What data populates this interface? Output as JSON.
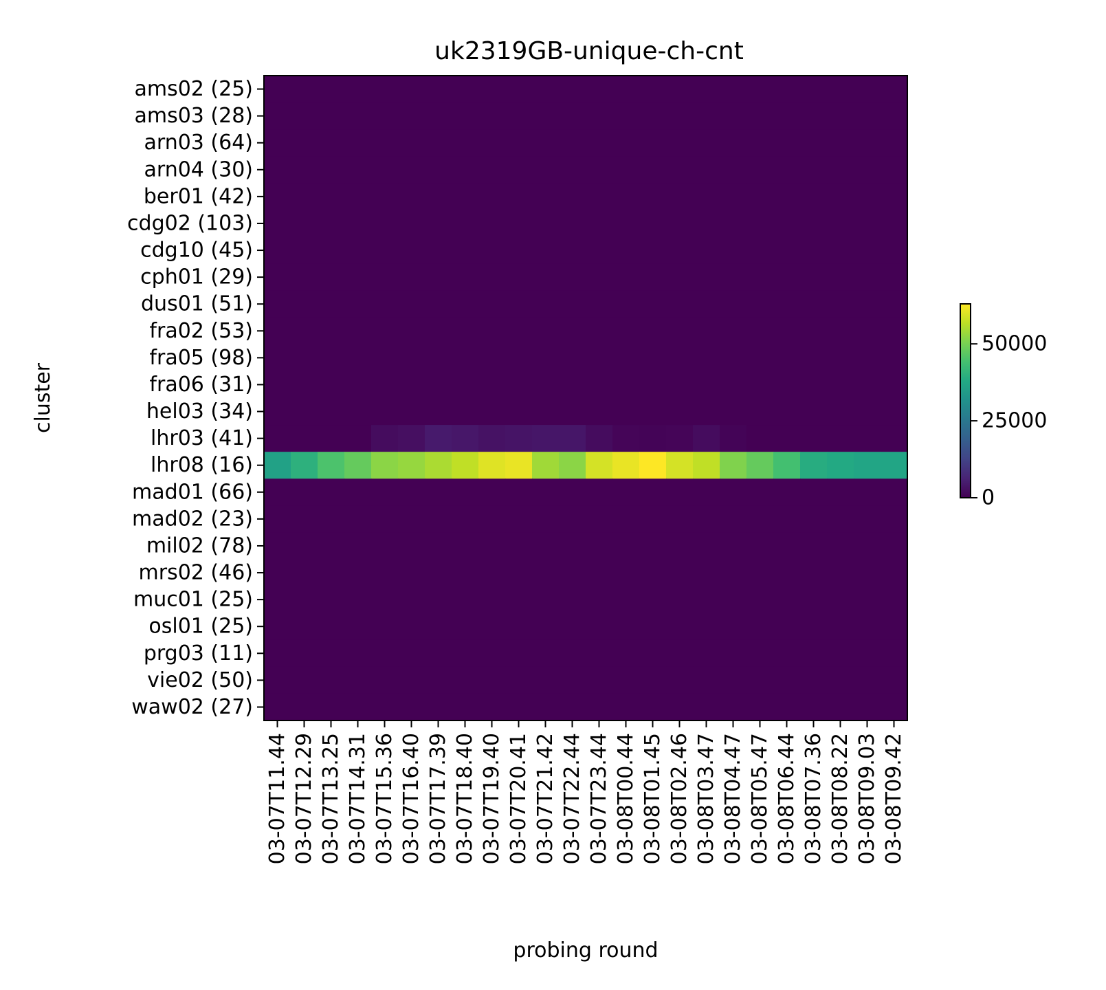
{
  "chart_data": {
    "type": "heatmap",
    "title": "uk2319GB-unique-ch-cnt",
    "xlabel": "probing round",
    "ylabel": "cluster",
    "x": [
      "03-07T11.44",
      "03-07T12.29",
      "03-07T13.25",
      "03-07T14.31",
      "03-07T15.36",
      "03-07T16.40",
      "03-07T17.39",
      "03-07T18.40",
      "03-07T19.40",
      "03-07T20.41",
      "03-07T21.42",
      "03-07T22.44",
      "03-07T23.44",
      "03-08T00.44",
      "03-08T01.45",
      "03-08T02.46",
      "03-08T03.47",
      "03-08T04.47",
      "03-08T05.47",
      "03-08T06.44",
      "03-08T07.36",
      "03-08T08.22",
      "03-08T09.03",
      "03-08T09.42"
    ],
    "y": [
      "ams02 (25)",
      "ams03 (28)",
      "arn03 (64)",
      "arn04 (30)",
      "ber01 (42)",
      "cdg02 (103)",
      "cdg10 (45)",
      "cph01 (29)",
      "dus01 (51)",
      "fra02 (53)",
      "fra05 (98)",
      "fra06 (31)",
      "hel03 (34)",
      "lhr03 (41)",
      "lhr08 (16)",
      "mad01 (66)",
      "mad02 (23)",
      "mil02 (78)",
      "mrs02 (46)",
      "muc01 (25)",
      "osl01 (25)",
      "prg03 (11)",
      "vie02 (50)",
      "waw02 (27)"
    ],
    "nonzero_rows": [
      {
        "row": "lhr03 (41)",
        "values": [
          0,
          0,
          0,
          0,
          2000,
          2500,
          4500,
          4000,
          3000,
          3500,
          3800,
          3800,
          2000,
          800,
          500,
          800,
          2000,
          500,
          0,
          0,
          0,
          0,
          0,
          0
        ]
      },
      {
        "row": "lhr08 (16)",
        "values": [
          36000,
          40000,
          45000,
          48000,
          52000,
          53000,
          55000,
          57000,
          60000,
          61000,
          54000,
          52000,
          59000,
          61000,
          63000,
          59000,
          57000,
          51000,
          48000,
          44000,
          39000,
          38000,
          37000,
          37000
        ]
      }
    ],
    "default_value": 0,
    "colormap": "viridis",
    "colorbar": {
      "vmin": 0,
      "vmax": 63000,
      "ticks": [
        0,
        25000,
        50000
      ],
      "tick_labels": [
        "0",
        "25000",
        "50000"
      ]
    }
  }
}
